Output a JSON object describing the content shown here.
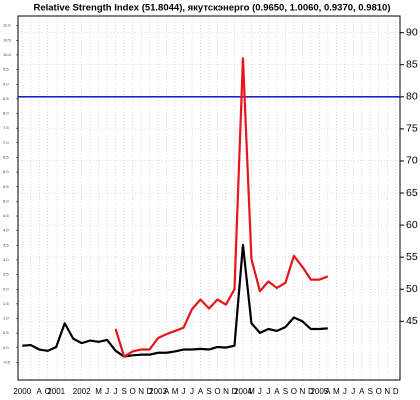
{
  "chart_data": {
    "type": "line",
    "title": "Relative Strength Index (51.8044), якутскэнерго (0.9650, 1.0060, 0.9370, 0.9810)",
    "categories": [
      "2000",
      null,
      "A",
      "O",
      "2001",
      null,
      null,
      "2002",
      null,
      "M",
      "J",
      "J",
      "S",
      "O",
      "N",
      "D",
      "2003",
      "A",
      "M",
      "J",
      "J",
      "A",
      "S",
      "O",
      "N",
      "D",
      "2004",
      "M",
      "J",
      "J",
      "A",
      "S",
      "O",
      "N",
      "D",
      "2005",
      "A",
      "M",
      "J",
      "J",
      "A",
      "S",
      "O",
      "N",
      "D"
    ],
    "series": [
      {
        "color": "#000000",
        "values": [
          41.2,
          41.3,
          40.6,
          40.4,
          41.0,
          44.7,
          42.3,
          41.6,
          42.0,
          41.8,
          42.1,
          40.4,
          39.5,
          39.7,
          39.8,
          39.8,
          40.1,
          40.1,
          40.3,
          40.6,
          40.6,
          40.7,
          40.6,
          41.0,
          40.9,
          41.2,
          56.9,
          44.7,
          43.2,
          43.8,
          43.5,
          44.1,
          45.6,
          45.0,
          43.8,
          43.8,
          43.9,
          null,
          null,
          null,
          null,
          null,
          null,
          null,
          null
        ]
      },
      {
        "color": "#e8141c",
        "values": [
          null,
          null,
          null,
          null,
          null,
          null,
          null,
          null,
          null,
          null,
          null,
          43.8,
          39.5,
          40.3,
          40.6,
          40.6,
          42.4,
          43.0,
          43.5,
          44.0,
          46.9,
          48.4,
          47.0,
          48.4,
          47.6,
          50.0,
          86.0,
          54.7,
          49.7,
          51.2,
          50.2,
          51.0,
          55.2,
          53.5,
          51.5,
          51.5,
          52.0,
          null,
          null,
          null,
          null,
          null,
          null,
          null,
          null
        ]
      }
    ],
    "hline": {
      "value": 80,
      "color": "#0000cc"
    },
    "ylim": [
      35.85,
      92.6
    ],
    "yticks": [
      45,
      50,
      55,
      60,
      65,
      70,
      75,
      80,
      85,
      90
    ],
    "y2lim": [
      -1.1,
      11.33
    ],
    "y2ticks": [
      {
        "value": 11,
        "label": "11.0"
      },
      10.5,
      {
        "value": 10,
        "label": "10.0"
      },
      9.5,
      {
        "value": 9,
        "label": "9.0"
      },
      8.5,
      {
        "value": 8,
        "label": "8.0"
      },
      7.5,
      {
        "value": 7,
        "label": "7.0"
      },
      6.5,
      {
        "value": 6,
        "label": "6.0"
      },
      5.5,
      {
        "value": 5,
        "label": "5.0"
      },
      4.5,
      {
        "value": 4,
        "label": "4.0"
      },
      3.5,
      {
        "value": 3,
        "label": "3.0"
      },
      2.5,
      {
        "value": 2,
        "label": "2.0"
      },
      1.5,
      {
        "value": 1,
        "label": "1.0"
      },
      0.5,
      {
        "value": 0,
        "label": "0.0"
      },
      -0.5
    ],
    "grid": true
  }
}
